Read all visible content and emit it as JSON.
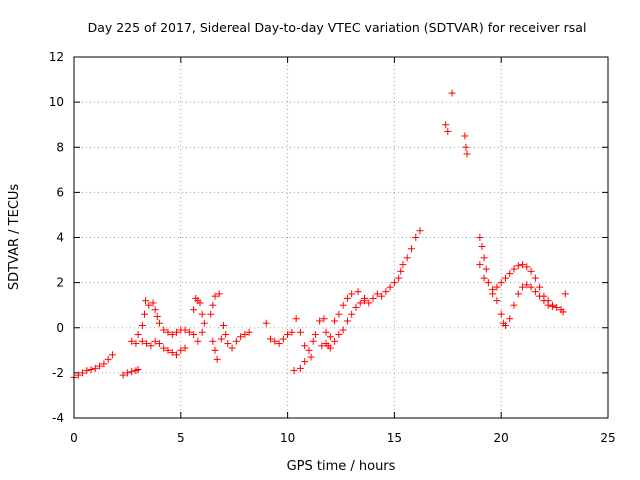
{
  "chart_data": {
    "type": "scatter",
    "title": "Day 225 of 2017, Sidereal Day-to-day VTEC variation (SDTVAR) for receiver rsal",
    "xlabel": "GPS time / hours",
    "ylabel": "SDTVAR / TECUs",
    "xlim": [
      0,
      25
    ],
    "ylim": [
      -4,
      12
    ],
    "xticks": [
      "0",
      "5",
      "10",
      "15",
      "20",
      "25"
    ],
    "yticks": [
      "-4",
      "-2",
      "0",
      "2",
      "4",
      "6",
      "8",
      "10",
      "12"
    ],
    "grid": true,
    "marker": "+",
    "color": "#ff0000",
    "series": [
      {
        "name": "SDTVAR",
        "points": [
          [
            0.0,
            -2.2
          ],
          [
            0.2,
            -2.1
          ],
          [
            0.4,
            -2.0
          ],
          [
            0.6,
            -1.9
          ],
          [
            0.8,
            -1.85
          ],
          [
            1.0,
            -1.8
          ],
          [
            1.2,
            -1.7
          ],
          [
            1.4,
            -1.6
          ],
          [
            1.6,
            -1.4
          ],
          [
            1.8,
            -1.2
          ],
          [
            2.3,
            -2.1
          ],
          [
            2.5,
            -2.0
          ],
          [
            2.7,
            -1.95
          ],
          [
            2.9,
            -1.9
          ],
          [
            3.0,
            -1.85
          ],
          [
            2.7,
            -0.6
          ],
          [
            2.9,
            -0.7
          ],
          [
            3.0,
            -0.3
          ],
          [
            3.2,
            0.1
          ],
          [
            3.3,
            0.6
          ],
          [
            3.35,
            1.2
          ],
          [
            3.5,
            1.0
          ],
          [
            3.7,
            1.1
          ],
          [
            3.8,
            0.8
          ],
          [
            3.9,
            0.5
          ],
          [
            4.0,
            0.2
          ],
          [
            4.2,
            -0.1
          ],
          [
            4.4,
            -0.2
          ],
          [
            4.6,
            -0.3
          ],
          [
            4.8,
            -0.2
          ],
          [
            5.0,
            -0.1
          ],
          [
            5.2,
            -0.1
          ],
          [
            5.4,
            -0.2
          ],
          [
            3.2,
            -0.6
          ],
          [
            3.4,
            -0.7
          ],
          [
            3.6,
            -0.8
          ],
          [
            3.8,
            -0.6
          ],
          [
            4.0,
            -0.7
          ],
          [
            4.2,
            -0.9
          ],
          [
            4.4,
            -1.0
          ],
          [
            4.6,
            -1.1
          ],
          [
            4.8,
            -1.2
          ],
          [
            5.0,
            -1.0
          ],
          [
            5.2,
            -0.9
          ],
          [
            5.6,
            0.8
          ],
          [
            5.7,
            1.3
          ],
          [
            5.8,
            1.2
          ],
          [
            5.9,
            1.1
          ],
          [
            6.0,
            0.6
          ],
          [
            6.1,
            0.2
          ],
          [
            5.6,
            -0.3
          ],
          [
            5.8,
            -0.6
          ],
          [
            6.0,
            -0.2
          ],
          [
            6.4,
            0.6
          ],
          [
            6.5,
            1.0
          ],
          [
            6.6,
            1.4
          ],
          [
            6.8,
            1.5
          ],
          [
            6.5,
            -0.6
          ],
          [
            6.6,
            -1.0
          ],
          [
            6.7,
            -1.4
          ],
          [
            6.9,
            -0.5
          ],
          [
            7.0,
            0.1
          ],
          [
            7.1,
            -0.3
          ],
          [
            7.2,
            -0.7
          ],
          [
            7.4,
            -0.9
          ],
          [
            7.6,
            -0.6
          ],
          [
            7.8,
            -0.4
          ],
          [
            8.0,
            -0.3
          ],
          [
            8.2,
            -0.2
          ],
          [
            9.0,
            0.2
          ],
          [
            9.2,
            -0.5
          ],
          [
            9.4,
            -0.6
          ],
          [
            9.6,
            -0.7
          ],
          [
            9.8,
            -0.5
          ],
          [
            10.0,
            -0.3
          ],
          [
            10.2,
            -0.2
          ],
          [
            10.4,
            0.4
          ],
          [
            10.6,
            -0.2
          ],
          [
            10.8,
            -0.8
          ],
          [
            11.0,
            -1.0
          ],
          [
            10.3,
            -1.9
          ],
          [
            10.6,
            -1.8
          ],
          [
            10.8,
            -1.5
          ],
          [
            11.1,
            -1.3
          ],
          [
            11.2,
            -0.6
          ],
          [
            11.3,
            -0.3
          ],
          [
            11.5,
            0.3
          ],
          [
            11.7,
            0.4
          ],
          [
            11.8,
            -0.2
          ],
          [
            11.9,
            -0.8
          ],
          [
            12.0,
            -0.4
          ],
          [
            12.2,
            0.3
          ],
          [
            12.4,
            0.6
          ],
          [
            12.6,
            1.0
          ],
          [
            12.8,
            1.3
          ],
          [
            13.0,
            1.5
          ],
          [
            13.3,
            1.6
          ],
          [
            13.6,
            1.3
          ],
          [
            11.6,
            -0.8
          ],
          [
            11.8,
            -0.7
          ],
          [
            12.0,
            -0.9
          ],
          [
            12.2,
            -0.6
          ],
          [
            12.4,
            -0.3
          ],
          [
            12.6,
            -0.1
          ],
          [
            12.8,
            0.3
          ],
          [
            13.0,
            0.6
          ],
          [
            13.2,
            0.9
          ],
          [
            13.4,
            1.1
          ],
          [
            13.6,
            1.2
          ],
          [
            13.8,
            1.1
          ],
          [
            14.0,
            1.3
          ],
          [
            14.2,
            1.5
          ],
          [
            14.4,
            1.4
          ],
          [
            14.6,
            1.6
          ],
          [
            14.8,
            1.8
          ],
          [
            15.0,
            2.0
          ],
          [
            15.2,
            2.2
          ],
          [
            15.3,
            2.5
          ],
          [
            15.4,
            2.8
          ],
          [
            15.6,
            3.1
          ],
          [
            15.8,
            3.5
          ],
          [
            16.0,
            4.0
          ],
          [
            16.2,
            4.3
          ],
          [
            17.4,
            9.0
          ],
          [
            17.5,
            8.7
          ],
          [
            17.7,
            10.4
          ],
          [
            18.3,
            8.5
          ],
          [
            18.35,
            8.0
          ],
          [
            18.4,
            7.7
          ],
          [
            19.0,
            4.0
          ],
          [
            19.1,
            3.6
          ],
          [
            19.2,
            3.1
          ],
          [
            19.3,
            2.6
          ],
          [
            19.0,
            2.8
          ],
          [
            19.2,
            2.2
          ],
          [
            19.4,
            2.0
          ],
          [
            19.6,
            1.7
          ],
          [
            19.8,
            1.2
          ],
          [
            20.0,
            0.6
          ],
          [
            20.1,
            0.2
          ],
          [
            20.2,
            0.1
          ],
          [
            20.4,
            0.4
          ],
          [
            20.6,
            1.0
          ],
          [
            20.8,
            1.5
          ],
          [
            21.0,
            1.8
          ],
          [
            21.2,
            1.9
          ],
          [
            21.4,
            1.8
          ],
          [
            19.6,
            1.5
          ],
          [
            19.8,
            1.8
          ],
          [
            20.0,
            2.0
          ],
          [
            20.2,
            2.2
          ],
          [
            20.4,
            2.4
          ],
          [
            20.6,
            2.6
          ],
          [
            20.8,
            2.75
          ],
          [
            21.0,
            2.8
          ],
          [
            21.2,
            2.7
          ],
          [
            21.4,
            2.5
          ],
          [
            21.6,
            2.2
          ],
          [
            21.8,
            1.8
          ],
          [
            22.0,
            1.4
          ],
          [
            22.2,
            1.2
          ],
          [
            22.4,
            1.0
          ],
          [
            21.6,
            1.6
          ],
          [
            21.8,
            1.4
          ],
          [
            22.0,
            1.2
          ],
          [
            22.2,
            1.0
          ],
          [
            22.4,
            0.95
          ],
          [
            22.6,
            0.9
          ],
          [
            22.8,
            0.8
          ],
          [
            22.9,
            0.7
          ],
          [
            23.0,
            1.5
          ]
        ]
      }
    ]
  }
}
